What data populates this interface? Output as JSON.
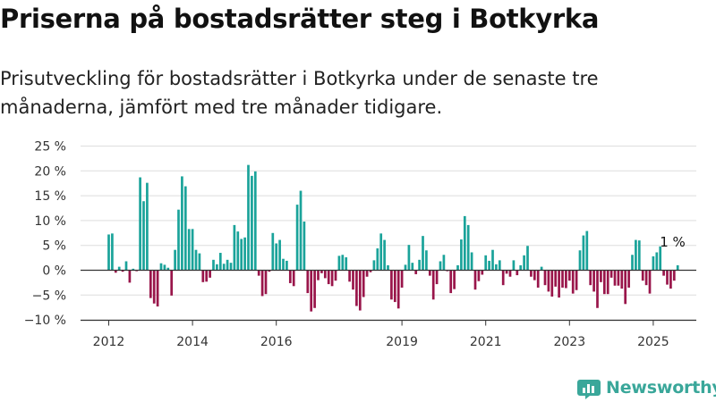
{
  "colors": {
    "positive": "#1aa39a",
    "negative": "#99154a",
    "grid": "#dedede",
    "axis": "#333333"
  },
  "chart_data": {
    "type": "bar",
    "title": "Priserna på bostadsrätter steg i Botkyrka",
    "subtitle": "Prisutveckling för bostadsrätter i Botkyrka under de senaste tre månaderna, jämfört med tre månader tidigare.",
    "xlabel": "",
    "ylabel": "",
    "ylim": [
      -10,
      25
    ],
    "y_ticks": [
      "25 %",
      "20 %",
      "15 %",
      "10 %",
      "5 %",
      "0 %",
      "−5 %",
      "−10 %"
    ],
    "y_tick_values": [
      25,
      20,
      15,
      10,
      5,
      0,
      -5,
      -10
    ],
    "x_ticks": [
      "2012",
      "2014",
      "2016",
      "2019",
      "2021",
      "2023",
      "2025"
    ],
    "x_tick_months": [
      0,
      24,
      48,
      84,
      108,
      132,
      156
    ],
    "grid": true,
    "legend": "none",
    "series": [
      {
        "start": "2012-01",
        "values": [
          7.2,
          7.4,
          -0.5,
          0.7,
          -0.3,
          1.8,
          -2.5,
          0.3,
          -0.2,
          18.7,
          13.9,
          17.6,
          -5.6,
          -6.7,
          -7.3,
          1.4,
          1.1,
          0.5,
          -5.1,
          4.1,
          12.2,
          18.9,
          16.9,
          8.3,
          8.3,
          4.1,
          3.4,
          -2.4,
          -2.3,
          -1.5,
          2.1,
          1.2,
          3.5,
          1.3,
          2.1,
          1.5,
          9.1,
          7.8,
          6.3,
          6.6,
          21.2,
          19.0,
          19.9,
          -1.1,
          -5.2,
          -4.8,
          -0.3,
          7.5,
          5.4,
          6.1,
          2.3,
          1.9,
          -2.6,
          -3.2,
          13.2,
          16.0,
          9.8,
          -4.6,
          -8.3,
          -7.6,
          -2.0,
          -0.6,
          -1.6,
          -2.8,
          -3.2,
          -2.1,
          2.9,
          3.1,
          2.6,
          -2.3,
          -3.9,
          -7.2,
          -8.1,
          -5.4,
          -1.3,
          -0.4,
          2.0,
          4.4,
          7.4,
          6.1,
          1.0,
          -5.9,
          -6.4,
          -7.7,
          -3.5,
          1.1,
          5.1,
          1.5,
          -0.8,
          2.1,
          6.9,
          4.0,
          -1.1,
          -5.9,
          -2.8,
          1.8,
          3.1,
          -0.2,
          -4.6,
          -3.8,
          1.0,
          6.2,
          10.9,
          9.1,
          3.6,
          -3.9,
          -2.2,
          -0.9,
          3.0,
          1.9,
          4.1,
          1.2,
          2.0,
          -3.0,
          -0.7,
          -1.3,
          2.0,
          -1.0,
          1.0,
          3.0,
          4.9,
          -1.3,
          -2.0,
          -3.5,
          0.7,
          -3.0,
          -4.3,
          -5.3,
          -3.3,
          -5.5,
          -3.5,
          -3.6,
          -2.1,
          -4.7,
          -4.0,
          4.0,
          7.0,
          7.9,
          -3.0,
          -4.3,
          -7.6,
          -2.4,
          -4.8,
          -4.8,
          -1.5,
          -3.1,
          -3.1,
          -3.7,
          -6.8,
          -3.5,
          3.1,
          6.1,
          6.0,
          -2.1,
          -3.0,
          -4.7,
          2.8,
          3.6,
          4.8,
          -1.1,
          -2.9,
          -3.7,
          -2.1,
          1.0
        ]
      }
    ],
    "annotations": [
      {
        "text": "1 %",
        "month": 163,
        "value": 1.0
      }
    ]
  },
  "branding": {
    "logo_text": "Newsworthy"
  }
}
